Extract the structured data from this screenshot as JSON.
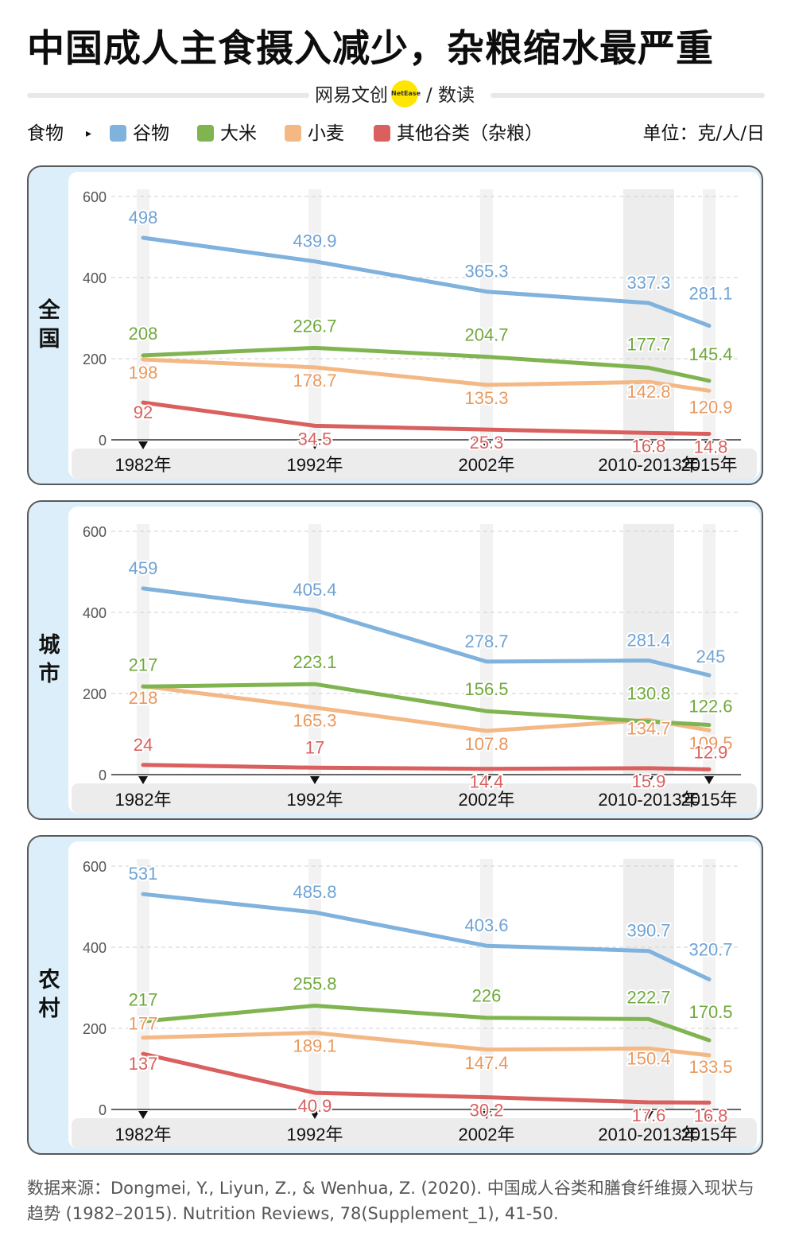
{
  "title": "中国成人主食摄入减少，杂粮缩水最严重",
  "brand": {
    "left": "网易文创",
    "badge": "NetEase",
    "right": "/ 数读"
  },
  "legend": {
    "label": "食物",
    "arrow": "▸",
    "items": [
      {
        "name": "谷物",
        "color": "#7fb2dc"
      },
      {
        "name": "大米",
        "color": "#80b451"
      },
      {
        "name": "小麦",
        "color": "#f3b884"
      },
      {
        "name": "其他谷类（杂粮）",
        "color": "#d9605f"
      }
    ],
    "unit": "单位：克/人/日"
  },
  "source": "数据来源：Dongmei, Y., Liyun, Z., & Wenhua, Z. (2020). 中国成人谷类和膳食纤维摄入现状与趋势 (1982–2015). Nutrition Reviews, 78(Supplement_1), 41-50.",
  "chart_data": [
    {
      "type": "line",
      "region": "全国",
      "categories": [
        "1982年",
        "1992年",
        "2002年",
        "2010-2013年",
        "2015年"
      ],
      "ylim": [
        0,
        600
      ],
      "yticks": [
        "0",
        "200",
        "400",
        "600"
      ],
      "series": [
        {
          "name": "谷物",
          "color": "#7fb2dc",
          "label_color": "#6fa3d4",
          "values": [
            498,
            439.9,
            365.3,
            337.3,
            281.1
          ],
          "labels": [
            "498",
            "439.9",
            "365.3",
            "337.3",
            "281.1"
          ]
        },
        {
          "name": "大米",
          "color": "#80b451",
          "label_color": "#6fa93c",
          "values": [
            208,
            226.7,
            204.7,
            177.7,
            145.4
          ],
          "labels": [
            "208",
            "226.7",
            "204.7",
            "177.7",
            "145.4"
          ]
        },
        {
          "name": "小麦",
          "color": "#f3b884",
          "label_color": "#e8995e",
          "values": [
            198,
            178.7,
            135.3,
            142.8,
            120.9
          ],
          "labels": [
            "198",
            "178.7",
            "135.3",
            "142.8",
            "120.9"
          ]
        },
        {
          "name": "其他谷类（杂粮）",
          "color": "#d9605f",
          "label_color": "#d9605f",
          "values": [
            92,
            34.5,
            25.3,
            16.8,
            14.8
          ],
          "labels": [
            "92",
            "34.5",
            "25.3",
            "16.8",
            "14.8"
          ]
        }
      ]
    },
    {
      "type": "line",
      "region": "城市",
      "categories": [
        "1982年",
        "1992年",
        "2002年",
        "2010-2013年",
        "2015年"
      ],
      "ylim": [
        0,
        600
      ],
      "yticks": [
        "0",
        "200",
        "400",
        "600"
      ],
      "series": [
        {
          "name": "谷物",
          "color": "#7fb2dc",
          "label_color": "#6fa3d4",
          "values": [
            459,
            405.4,
            278.7,
            281.4,
            245
          ],
          "labels": [
            "459",
            "405.4",
            "278.7",
            "281.4",
            "245"
          ]
        },
        {
          "name": "大米",
          "color": "#80b451",
          "label_color": "#6fa93c",
          "values": [
            217,
            223.1,
            156.5,
            130.8,
            122.6
          ],
          "labels": [
            "217",
            "223.1",
            "156.5",
            "130.8",
            "122.6"
          ]
        },
        {
          "name": "小麦",
          "color": "#f3b884",
          "label_color": "#e8995e",
          "values": [
            218,
            165.3,
            107.8,
            134.7,
            109.5
          ],
          "labels": [
            "218",
            "165.3",
            "107.8",
            "134.7",
            "109.5"
          ]
        },
        {
          "name": "其他谷类（杂粮）",
          "color": "#d9605f",
          "label_color": "#d9605f",
          "values": [
            24,
            17,
            14.4,
            15.9,
            12.9
          ],
          "labels": [
            "24",
            "17",
            "14.4",
            "15.9",
            "12.9"
          ]
        }
      ]
    },
    {
      "type": "line",
      "region": "农村",
      "categories": [
        "1982年",
        "1992年",
        "2002年",
        "2010-2013年",
        "2015年"
      ],
      "ylim": [
        0,
        600
      ],
      "yticks": [
        "0",
        "200",
        "400",
        "600"
      ],
      "series": [
        {
          "name": "谷物",
          "color": "#7fb2dc",
          "label_color": "#6fa3d4",
          "values": [
            531,
            485.8,
            403.6,
            390.7,
            320.7
          ],
          "labels": [
            "531",
            "485.8",
            "403.6",
            "390.7",
            "320.7"
          ]
        },
        {
          "name": "大米",
          "color": "#80b451",
          "label_color": "#6fa93c",
          "values": [
            217,
            255.8,
            226,
            222.7,
            170.5
          ],
          "labels": [
            "217",
            "255.8",
            "226",
            "222.7",
            "170.5"
          ]
        },
        {
          "name": "小麦",
          "color": "#f3b884",
          "label_color": "#e8995e",
          "values": [
            177,
            189.1,
            147.4,
            150.4,
            133.5
          ],
          "labels": [
            "177",
            "189.1",
            "147.4",
            "150.4",
            "133.5"
          ]
        },
        {
          "name": "其他谷类（杂粮）",
          "color": "#d9605f",
          "label_color": "#d9605f",
          "values": [
            137,
            40.9,
            30.2,
            17.6,
            16.8
          ],
          "labels": [
            "137",
            "40.9",
            "30.2",
            "17.6",
            "16.8"
          ]
        }
      ]
    }
  ]
}
